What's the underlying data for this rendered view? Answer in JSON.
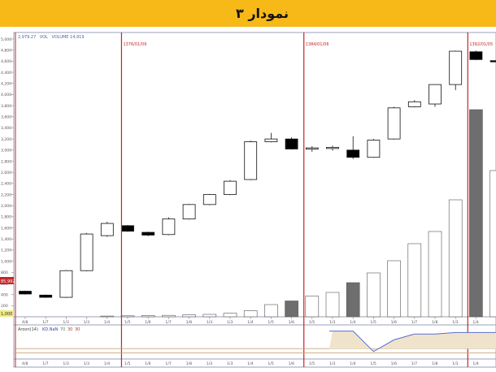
{
  "header": {
    "title": "نمودار ۳"
  },
  "chart_data": {
    "type": "candlestick",
    "title": "",
    "price_info": "2,979.27",
    "volume_label": "VOL",
    "volume_info": "VOLUME 14,919",
    "last_price_tag": "85,992",
    "volume_scale_tag": "1,000",
    "ylim": [
      0,
      5000
    ],
    "y_ticks": [
      200,
      400,
      600,
      800,
      1000,
      1200,
      1400,
      1600,
      1800,
      2000,
      2200,
      2400,
      2600,
      2800,
      3000,
      3200,
      3400,
      3600,
      3800,
      4000,
      4200,
      4400,
      4600,
      4800,
      5000
    ],
    "x_labels": [
      "4/8",
      "1/7",
      "1/3",
      "1/3",
      "1/4",
      "1/5",
      "1/6",
      "1/7",
      "1/8",
      "1/3",
      "1/3",
      "1/4",
      "1/5",
      "1/6",
      "1/5",
      "1/3",
      "1/4",
      "1/5",
      "1/6",
      "1/7",
      "1/8",
      "1/3",
      "1/4",
      "1/5",
      "1/6",
      "1/5"
    ],
    "candles": [
      {
        "open": 460,
        "high": 470,
        "low": 400,
        "close": 410
      },
      {
        "open": 390,
        "high": 400,
        "low": 340,
        "close": 350
      },
      {
        "open": 350,
        "high": 840,
        "low": 340,
        "close": 830
      },
      {
        "open": 830,
        "high": 1510,
        "low": 820,
        "close": 1490
      },
      {
        "open": 1460,
        "high": 1710,
        "low": 1440,
        "close": 1680
      },
      {
        "open": 1640,
        "high": 1650,
        "low": 1530,
        "close": 1540
      },
      {
        "open": 1520,
        "high": 1530,
        "low": 1450,
        "close": 1470
      },
      {
        "open": 1480,
        "high": 1790,
        "low": 1470,
        "close": 1760
      },
      {
        "open": 1760,
        "high": 2030,
        "low": 1750,
        "close": 2020
      },
      {
        "open": 2020,
        "high": 2210,
        "low": 2010,
        "close": 2200
      },
      {
        "open": 2200,
        "high": 2460,
        "low": 2190,
        "close": 2440
      },
      {
        "open": 2470,
        "high": 3170,
        "low": 2460,
        "close": 3150
      },
      {
        "open": 3150,
        "high": 3310,
        "low": 3140,
        "close": 3200
      },
      {
        "open": 3200,
        "high": 3230,
        "low": 3010,
        "close": 3020
      },
      {
        "open": 3020,
        "high": 3070,
        "low": 2970,
        "close": 3040
      },
      {
        "open": 3030,
        "high": 3080,
        "low": 2990,
        "close": 3050
      },
      {
        "open": 3000,
        "high": 3250,
        "low": 2840,
        "close": 2870
      },
      {
        "open": 2870,
        "high": 3200,
        "low": 2860,
        "close": 3180
      },
      {
        "open": 3200,
        "high": 3780,
        "low": 3190,
        "close": 3760
      },
      {
        "open": 3780,
        "high": 3900,
        "low": 3770,
        "close": 3870
      },
      {
        "open": 3830,
        "high": 4180,
        "low": 3780,
        "close": 4180
      },
      {
        "open": 4180,
        "high": 4790,
        "low": 4080,
        "close": 4780
      },
      {
        "open": 4770,
        "high": 4790,
        "low": 4620,
        "close": 4630
      },
      {
        "open": 4610,
        "high": 4650,
        "low": 4570,
        "close": 4600
      }
    ],
    "volume": [
      0,
      0,
      0,
      0,
      0.3,
      0.4,
      0.5,
      0.6,
      0.8,
      1,
      1.5,
      2.5,
      5,
      6.5,
      8.5,
      10,
      14,
      18,
      23,
      30,
      35,
      48,
      85,
      60
    ],
    "volume_filled": [
      false,
      false,
      false,
      false,
      false,
      false,
      false,
      false,
      false,
      false,
      false,
      false,
      false,
      true,
      false,
      false,
      true,
      false,
      false,
      false,
      false,
      false,
      true,
      false
    ],
    "event_lines": [
      {
        "index": 4.7,
        "label": "1376/01/09"
      },
      {
        "index": 13.6,
        "label": "1384/01/06"
      },
      {
        "index": 21.6,
        "label": "1392/01/05"
      }
    ],
    "indicator": {
      "label": "Aroon(14)",
      "sub_labels": [
        "KD.NaN",
        "70",
        "30",
        "30"
      ],
      "values": [
        null,
        null,
        null,
        null,
        null,
        null,
        null,
        null,
        null,
        null,
        null,
        null,
        null,
        null,
        null,
        0.9,
        0.9,
        0.2,
        0.6,
        0.8,
        0.8,
        0.85,
        0.85,
        0.85
      ],
      "upper_level": 0.3,
      "lower_level": 0.15
    }
  }
}
